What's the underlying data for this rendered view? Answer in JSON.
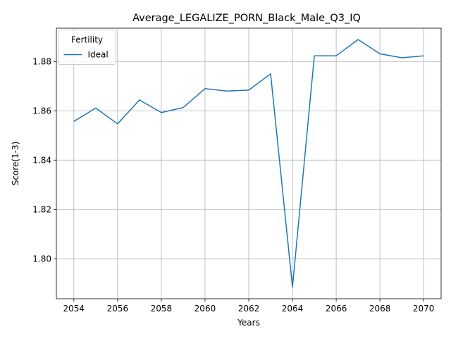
{
  "chart_data": {
    "type": "line",
    "title": "Average_LEGALIZE_PORN_Black_Male_Q3_IQ",
    "xlabel": "Years",
    "ylabel": "Score(1-3)",
    "x": [
      2054,
      2055,
      2056,
      2057,
      2058,
      2059,
      2060,
      2061,
      2062,
      2063,
      2064,
      2065,
      2066,
      2067,
      2068,
      2069,
      2070
    ],
    "series": [
      {
        "name": "Ideal",
        "color": "#1f77b4",
        "values": [
          1.8557,
          1.8611,
          1.8547,
          1.8644,
          1.8593,
          1.8613,
          1.869,
          1.868,
          1.8684,
          1.875,
          1.7885,
          1.8823,
          1.8823,
          1.8889,
          1.8831,
          1.8815,
          1.8823
        ]
      }
    ],
    "xlim": [
      2053.2,
      2070.8
    ],
    "ylim": [
      1.7838,
      1.8935
    ],
    "xticks": [
      2054,
      2056,
      2058,
      2060,
      2062,
      2064,
      2066,
      2068,
      2070
    ],
    "yticks": [
      1.8,
      1.82,
      1.84,
      1.86,
      1.88
    ],
    "ytick_labels": [
      "1.80",
      "1.82",
      "1.84",
      "1.86",
      "1.88"
    ],
    "grid": true,
    "legend": {
      "title": "Fertility",
      "placement": "top-left"
    }
  }
}
